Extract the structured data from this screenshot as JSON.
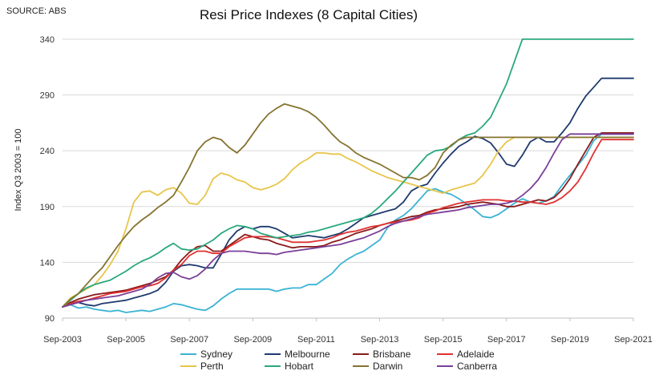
{
  "source_note": "SOURCE: ABS",
  "chart_data": {
    "type": "line",
    "title": "Resi Price Indexes (8 Capital Cities)",
    "ylabel": "Index Q3 2003 = 100",
    "xlabel": "",
    "ylim": [
      90,
      350
    ],
    "yticks": [
      90,
      140,
      190,
      240,
      290,
      340
    ],
    "xlim": [
      0,
      72
    ],
    "xtick_labels": [
      {
        "q": 0,
        "label": "Sep-2003"
      },
      {
        "q": 8,
        "label": "Sep-2005"
      },
      {
        "q": 16,
        "label": "Sep-2007"
      },
      {
        "q": 24,
        "label": "Sep-2009"
      },
      {
        "q": 32,
        "label": "Sep-2011"
      },
      {
        "q": 40,
        "label": "Sep-2013"
      },
      {
        "q": 48,
        "label": "Sep-2015"
      },
      {
        "q": 56,
        "label": "Sep-2017"
      },
      {
        "q": 64,
        "label": "Sep-2019"
      },
      {
        "q": 72,
        "label": "Sep-2021"
      }
    ],
    "grid": "horizontal",
    "legend_position": "bottom",
    "series": [
      {
        "name": "Sydney",
        "color": "#3bb3d4",
        "values": [
          100,
          102,
          99,
          100,
          98,
          97,
          96,
          97,
          95,
          96,
          97,
          96,
          98,
          100,
          103,
          102,
          100,
          98,
          97,
          101,
          107,
          112,
          116,
          116,
          116,
          116,
          116,
          114,
          116,
          117,
          117,
          120,
          120,
          125,
          130,
          138,
          143,
          147,
          150,
          155,
          160,
          171,
          178,
          182,
          188,
          196,
          204,
          206,
          203,
          201,
          197,
          192,
          187,
          181,
          180,
          183,
          188,
          193,
          197,
          194,
          193,
          195,
          199,
          209,
          218,
          227,
          236,
          249,
          255,
          255,
          255,
          255,
          255
        ]
      },
      {
        "name": "Melbourne",
        "color": "#1f3a6e",
        "values": [
          100,
          103,
          104,
          102,
          101,
          103,
          104,
          105,
          106,
          108,
          110,
          112,
          115,
          122,
          132,
          137,
          138,
          137,
          135,
          135,
          147,
          160,
          168,
          172,
          170,
          172,
          172,
          170,
          166,
          162,
          163,
          164,
          163,
          162,
          164,
          166,
          170,
          175,
          180,
          182,
          184,
          186,
          188,
          194,
          204,
          208,
          210,
          220,
          229,
          237,
          244,
          248,
          253,
          251,
          247,
          238,
          228,
          226,
          236,
          248,
          252,
          248,
          248,
          256,
          265,
          278,
          289,
          297,
          305,
          305,
          305,
          305,
          305
        ]
      },
      {
        "name": "Brisbane",
        "color": "#8b1a1a",
        "values": [
          100,
          104,
          107,
          109,
          111,
          112,
          113,
          114,
          115,
          117,
          119,
          121,
          124,
          127,
          133,
          142,
          149,
          154,
          155,
          150,
          150,
          155,
          160,
          165,
          163,
          161,
          160,
          157,
          155,
          153,
          154,
          154,
          154,
          155,
          158,
          160,
          163,
          166,
          168,
          170,
          173,
          175,
          177,
          179,
          181,
          182,
          185,
          187,
          188,
          189,
          190,
          192,
          193,
          194,
          193,
          192,
          190,
          190,
          192,
          194,
          196,
          195,
          198,
          205,
          215,
          228,
          240,
          252,
          256,
          256,
          256,
          256,
          256
        ]
      },
      {
        "name": "Adelaide",
        "color": "#e03030",
        "values": [
          100,
          103,
          105,
          106,
          108,
          110,
          112,
          113,
          114,
          116,
          118,
          119,
          121,
          126,
          133,
          138,
          146,
          150,
          150,
          148,
          148,
          154,
          158,
          162,
          163,
          163,
          163,
          162,
          160,
          158,
          158,
          158,
          159,
          160,
          162,
          165,
          167,
          168,
          170,
          172,
          173,
          175,
          176,
          177,
          178,
          180,
          184,
          186,
          189,
          191,
          193,
          194,
          195,
          196,
          196,
          196,
          195,
          195,
          194,
          194,
          193,
          192,
          194,
          198,
          204,
          212,
          224,
          238,
          250,
          250,
          250,
          250,
          250
        ]
      },
      {
        "name": "Perth",
        "color": "#e8c54a",
        "values": [
          100,
          108,
          112,
          116,
          120,
          128,
          138,
          150,
          170,
          194,
          203,
          204,
          200,
          205,
          207,
          202,
          193,
          192,
          200,
          215,
          220,
          218,
          214,
          212,
          207,
          205,
          207,
          210,
          215,
          223,
          229,
          233,
          238,
          238,
          237,
          237,
          233,
          230,
          226,
          222,
          219,
          216,
          214,
          212,
          210,
          208,
          206,
          204,
          202,
          205,
          207,
          209,
          211,
          218,
          228,
          240,
          248,
          252,
          252,
          252,
          252,
          252,
          252,
          252,
          252,
          252,
          252,
          252,
          252,
          252,
          252,
          252,
          252
        ]
      },
      {
        "name": "Hobart",
        "color": "#2aa87e",
        "values": [
          100,
          106,
          112,
          117,
          120,
          122,
          124,
          128,
          132,
          137,
          141,
          144,
          148,
          153,
          157,
          152,
          151,
          152,
          156,
          160,
          166,
          170,
          173,
          172,
          170,
          166,
          164,
          162,
          163,
          164,
          165,
          167,
          168,
          170,
          172,
          174,
          176,
          178,
          180,
          184,
          190,
          197,
          204,
          212,
          220,
          228,
          236,
          240,
          241,
          244,
          250,
          254,
          256,
          262,
          270,
          285,
          300,
          320,
          340,
          340,
          340,
          340,
          340,
          340,
          340,
          340,
          340,
          340,
          340,
          340,
          340,
          340,
          340
        ]
      },
      {
        "name": "Darwin",
        "color": "#857330",
        "values": [
          100,
          107,
          112,
          120,
          128,
          135,
          145,
          155,
          164,
          172,
          178,
          183,
          189,
          194,
          200,
          212,
          225,
          240,
          248,
          252,
          250,
          243,
          238,
          245,
          255,
          265,
          273,
          278,
          282,
          280,
          278,
          275,
          270,
          263,
          255,
          248,
          244,
          238,
          234,
          231,
          228,
          224,
          220,
          216,
          216,
          214,
          218,
          225,
          238,
          245,
          250,
          252,
          252,
          252,
          252,
          252,
          252,
          252,
          252,
          252,
          252,
          252,
          252,
          252,
          252,
          252,
          252,
          252,
          252,
          252,
          252,
          252,
          252
        ]
      },
      {
        "name": "Canberra",
        "color": "#7b3f99",
        "values": [
          100,
          102,
          104,
          106,
          107,
          108,
          109,
          110,
          112,
          114,
          116,
          120,
          126,
          130,
          131,
          127,
          125,
          128,
          134,
          142,
          148,
          150,
          150,
          150,
          149,
          148,
          148,
          147,
          149,
          150,
          151,
          152,
          153,
          154,
          155,
          156,
          158,
          160,
          162,
          165,
          168,
          172,
          175,
          177,
          179,
          181,
          183,
          184,
          185,
          186,
          187,
          189,
          190,
          191,
          192,
          192,
          193,
          195,
          200,
          206,
          214,
          225,
          238,
          250,
          255,
          255,
          255,
          255,
          255,
          255,
          255,
          255,
          255
        ]
      }
    ]
  }
}
